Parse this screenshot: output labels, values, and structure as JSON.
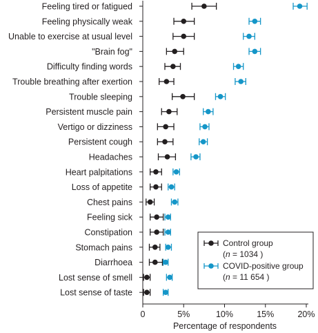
{
  "chart_data": {
    "type": "scatter",
    "subtype": "dot-plot-with-error-bars",
    "title": "",
    "xlabel": "Percentage of respondents",
    "ylabel": "",
    "xlim": [
      0,
      20
    ],
    "xticks": [
      0,
      5,
      10,
      15,
      20
    ],
    "xtick_labels": [
      "0",
      "5%",
      "10%",
      "15%",
      "20%"
    ],
    "grid": false,
    "legend_position": "bottom-right",
    "categories": [
      "Feeling tired or fatigued",
      "Feeling physically weak",
      "Unable to exercise at usual level",
      "\"Brain fog\"",
      "Difficulty finding words",
      "Trouble breathing after exertion",
      "Trouble sleeping",
      "Persistent muscle pain",
      "Vertigo or dizziness",
      "Persistent cough",
      "Headaches",
      "Heart palpitations",
      "Loss of appetite",
      "Chest pains",
      "Feeling sick",
      "Constipation",
      "Stomach pains",
      "Diarrhoea",
      "Lost sense of smell",
      "Lost sense of taste"
    ],
    "series": [
      {
        "name": "Control group",
        "n_label_prefix": "(",
        "n_label_var": "n",
        "n_label_value": " = 1034 )",
        "color": "#231f20",
        "values": [
          7.5,
          5.0,
          5.0,
          3.9,
          3.7,
          2.9,
          4.9,
          3.2,
          2.8,
          2.7,
          3.0,
          1.6,
          1.6,
          0.9,
          1.7,
          1.7,
          1.5,
          1.5,
          0.5,
          0.5
        ],
        "ci_low": [
          6.0,
          3.8,
          3.7,
          2.9,
          2.7,
          2.0,
          3.6,
          2.3,
          1.8,
          1.8,
          1.9,
          0.9,
          0.9,
          0.4,
          0.9,
          0.9,
          0.8,
          0.8,
          0.1,
          0.1
        ],
        "ci_high": [
          9.0,
          6.3,
          6.3,
          5.0,
          4.6,
          3.8,
          6.3,
          4.2,
          3.8,
          3.7,
          4.0,
          2.3,
          2.3,
          1.4,
          2.5,
          2.5,
          2.1,
          2.4,
          0.9,
          0.9
        ]
      },
      {
        "name": "COVID-positive group",
        "n_label_prefix": "(",
        "n_label_var": "n",
        "n_label_value": " = 11 654 )",
        "color": "#1596c8",
        "values": [
          19.2,
          13.7,
          13.0,
          13.7,
          11.7,
          12.0,
          9.5,
          8.0,
          7.6,
          7.4,
          6.5,
          4.1,
          3.5,
          3.9,
          3.1,
          3.1,
          3.1,
          2.8,
          3.3,
          2.8
        ],
        "ci_low": [
          18.4,
          13.0,
          12.3,
          13.0,
          11.1,
          11.3,
          8.9,
          7.4,
          7.0,
          6.9,
          5.9,
          3.7,
          3.1,
          3.5,
          2.7,
          2.7,
          2.8,
          2.5,
          2.9,
          2.5
        ],
        "ci_high": [
          20.1,
          14.4,
          13.7,
          14.4,
          12.3,
          12.6,
          10.1,
          8.6,
          8.1,
          7.9,
          7.0,
          4.5,
          3.9,
          4.3,
          3.4,
          3.4,
          3.5,
          3.1,
          3.6,
          3.1
        ]
      }
    ]
  }
}
